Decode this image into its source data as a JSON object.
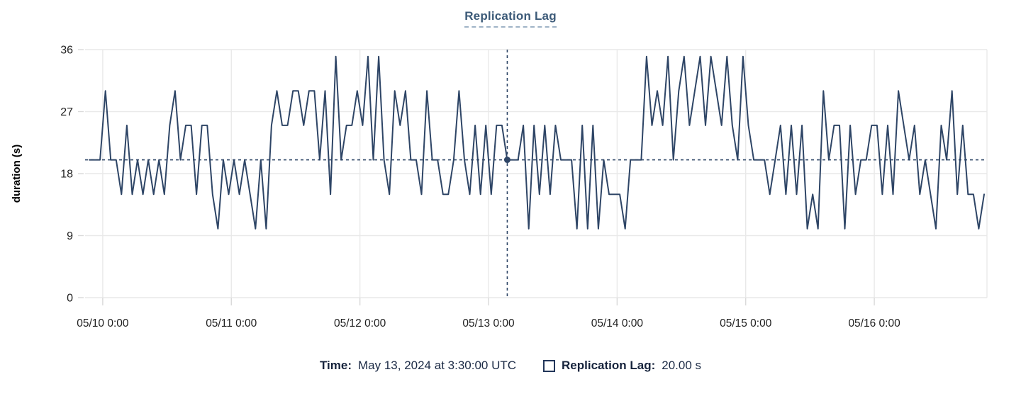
{
  "header": {
    "title": "Replication Lag"
  },
  "y_axis": {
    "label": "duration (s)",
    "ticks": [
      0,
      9,
      18,
      27,
      36
    ],
    "max": 36
  },
  "x_axis": {
    "ticks": [
      "05/10 0:00",
      "05/11 0:00",
      "05/12 0:00",
      "05/13 0:00",
      "05/14 0:00",
      "05/15 0:00",
      "05/16 0:00"
    ]
  },
  "tooltip": {
    "time_label": "Time:",
    "time_value": "May 13, 2024 at 3:30:00 UTC",
    "series_label": "Replication Lag:",
    "series_value": "20.00 s"
  },
  "colors": {
    "line": "#2e4566",
    "crosshair": "#2e4566",
    "title": "#3c5a78",
    "grid": "#e9e9e9",
    "tick": "#d9d9d9",
    "axis_text": "#1f1f1f",
    "legend_text": "#16233c"
  },
  "chart_data": {
    "type": "line",
    "title": "Replication Lag",
    "ylabel": "duration (s)",
    "xlabel": "",
    "ylim": [
      0,
      36
    ],
    "yticks": [
      0,
      9,
      18,
      27,
      36
    ],
    "xtick_labels": [
      "05/10 0:00",
      "05/11 0:00",
      "05/12 0:00",
      "05/13 0:00",
      "05/14 0:00",
      "05/15 0:00",
      "05/16 0:00"
    ],
    "grid": true,
    "legend_position": "bottom",
    "sample_interval": "1 hour",
    "points_per_day": 24,
    "first_tick_point_index": 2.5,
    "crosshair": {
      "point_index": 78,
      "value": 20,
      "time": "May 13, 2024 at 3:30:00 UTC",
      "display_value": "20.00 s"
    },
    "series": [
      {
        "name": "Replication Lag",
        "unit": "s",
        "values": [
          20,
          20,
          20,
          30,
          20,
          20,
          15,
          25,
          15,
          20,
          15,
          20,
          15,
          20,
          15,
          25,
          30,
          20,
          25,
          25,
          15,
          25,
          25,
          15,
          10,
          20,
          15,
          20,
          15,
          20,
          15,
          10,
          20,
          10,
          25,
          30,
          25,
          25,
          30,
          30,
          25,
          30,
          30,
          20,
          30,
          15,
          35,
          20,
          25,
          25,
          30,
          25,
          35,
          20,
          35,
          20,
          15,
          30,
          25,
          30,
          20,
          20,
          15,
          30,
          20,
          20,
          15,
          15,
          20,
          30,
          20,
          15,
          25,
          15,
          25,
          15,
          25,
          25,
          20,
          20,
          20,
          25,
          10,
          25,
          15,
          25,
          15,
          25,
          20,
          20,
          20,
          10,
          25,
          10,
          25,
          10,
          20,
          15,
          15,
          15,
          10,
          20,
          20,
          20,
          35,
          25,
          30,
          25,
          35,
          20,
          30,
          35,
          25,
          30,
          35,
          25,
          35,
          30,
          25,
          35,
          25,
          20,
          35,
          25,
          20,
          20,
          20,
          15,
          20,
          25,
          15,
          25,
          15,
          25,
          10,
          15,
          10,
          30,
          20,
          25,
          25,
          10,
          25,
          15,
          20,
          20,
          25,
          25,
          15,
          25,
          15,
          30,
          25,
          20,
          25,
          15,
          20,
          15,
          10,
          25,
          20,
          30,
          15,
          25,
          15,
          15,
          10,
          15
        ]
      }
    ]
  }
}
